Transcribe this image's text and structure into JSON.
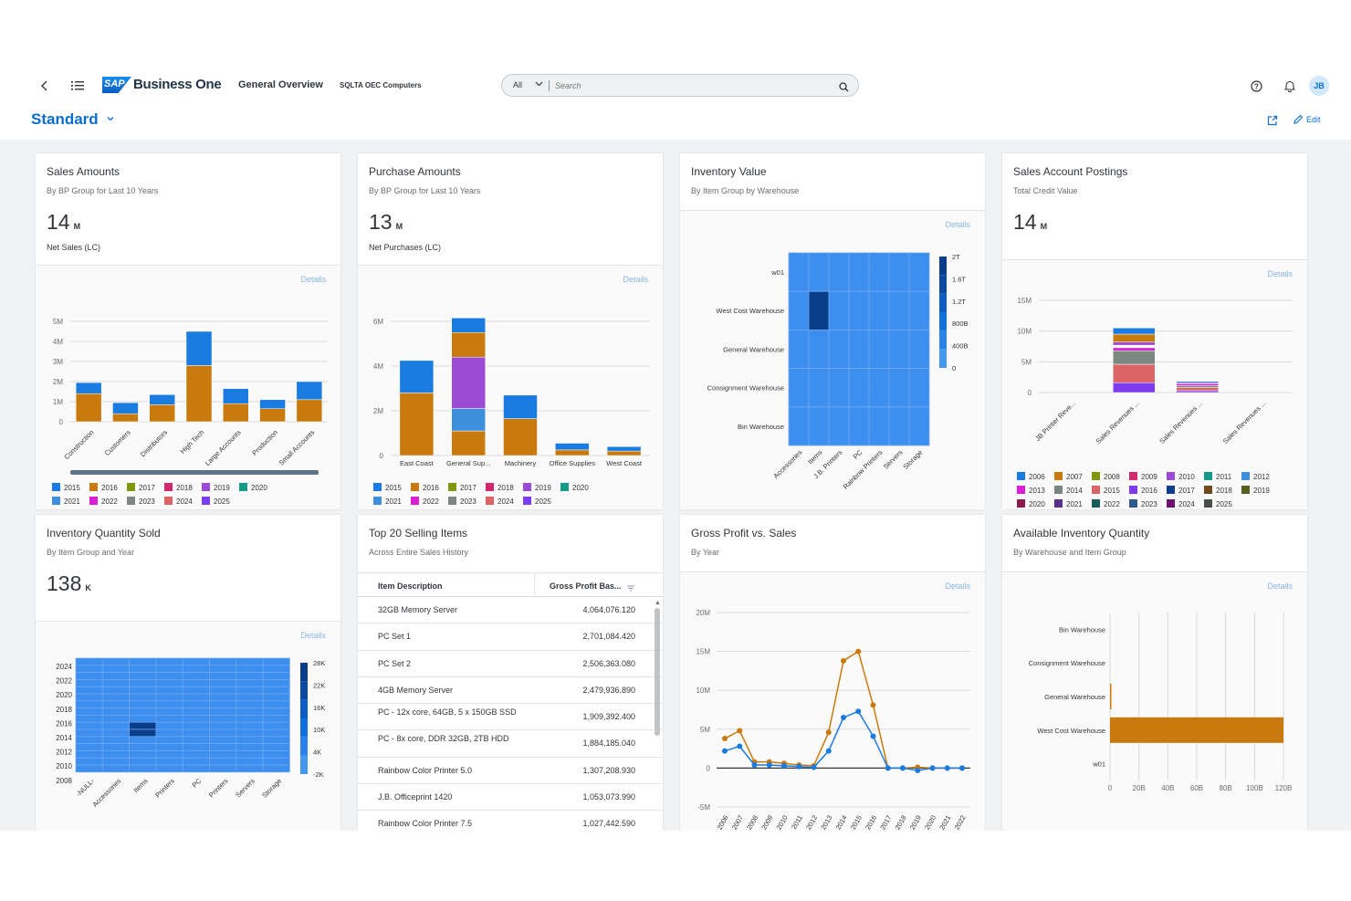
{
  "shell": {
    "logo_sap": "SAP",
    "product": "Business One",
    "title": "General Overview",
    "company": "SQLTA OEC Computers",
    "search_scope": "All",
    "search_placeholder": "Search",
    "avatar": "JB",
    "icons": [
      "back-icon",
      "menu-list-icon",
      "search-icon",
      "help-icon",
      "notification-bell-icon",
      "share-icon",
      "edit-pencil-icon"
    ]
  },
  "page": {
    "variant": "Standard",
    "edit_label": "Edit",
    "details_label": "Details"
  },
  "colors": {
    "y2015": "#1a7be0",
    "y2016": "#c87b0c",
    "y2017": "#82960b",
    "y2018": "#d2286e",
    "y2019": "#9b4ad6",
    "y2020": "#14998a",
    "y2021": "#3d8fdb",
    "y2022": "#dc1ed6",
    "y2023": "#7d8781",
    "y2024": "#dc6465",
    "y2025": "#7e3cf0",
    "heat_low": "#3d8fef",
    "heat_high": "#0a3e8a",
    "accent": "#0a6ed1"
  },
  "cards": {
    "sales": {
      "title": "Sales Amounts",
      "subtitle": "By BP Group for Last 10 Years",
      "kpi": "14",
      "kpi_scale": "M",
      "kpi_label": "Net Sales (LC)"
    },
    "purchase": {
      "title": "Purchase Amounts",
      "subtitle": "By BP Group for Last 10 Years",
      "kpi": "13",
      "kpi_scale": "M",
      "kpi_label": "Net Purchases (LC)"
    },
    "inventory_value": {
      "title": "Inventory Value",
      "subtitle": "By Item Group by Warehouse"
    },
    "postings": {
      "title": "Sales Account Postings",
      "subtitle": "Total Credit Value",
      "kpi": "14",
      "kpi_scale": "M"
    },
    "qty_sold": {
      "title": "Inventory Quantity Sold",
      "subtitle": "By Item Group and Year",
      "kpi": "138",
      "kpi_scale": "K"
    },
    "top20": {
      "title": "Top 20 Selling Items",
      "subtitle": "Across Entire Sales History",
      "col1": "Item Description",
      "col2": "Gross Profit Bas...",
      "rows": [
        {
          "item": "32GB Memory Server",
          "value": "4,064,076.120"
        },
        {
          "item": "PC Set 1",
          "value": "2,701,084.420"
        },
        {
          "item": "PC Set 2",
          "value": "2,506,363.080"
        },
        {
          "item": "4GB Memory Server",
          "value": "2,479,936.890"
        },
        {
          "item": "PC - 12x core, 64GB, 5 x 150GB SSD",
          "value": "1,909,392.400"
        },
        {
          "item": "PC - 8x core, DDR 32GB, 2TB HDD",
          "value": "1,884,185.040"
        },
        {
          "item": "Rainbow Color Printer 5.0",
          "value": "1,307,208.930"
        },
        {
          "item": "J.B. Officeprint 1420",
          "value": "1,053,073.990"
        },
        {
          "item": "Rainbow Color Printer 7.5",
          "value": "1,027,442.590"
        }
      ]
    },
    "gross": {
      "title": "Gross Profit vs. Sales",
      "subtitle": "By Year"
    },
    "available": {
      "title": "Available Inventory Quantity",
      "subtitle": "By Warehouse and Item Group"
    }
  },
  "chart_data": [
    {
      "id": "sales_amounts",
      "type": "bar",
      "stacked": true,
      "categories": [
        "Construction",
        "Customers",
        "Distributors",
        "High Tech",
        "Large Accounts",
        "Production",
        "Small Accounts"
      ],
      "y_ticks": [
        "0",
        "1M",
        "2M",
        "3M",
        "4M",
        "5M"
      ],
      "ylim": [
        0,
        5000000
      ],
      "legend": [
        "2015",
        "2016",
        "2017",
        "2018",
        "2019",
        "2020",
        "2021",
        "2022",
        "2023",
        "2024",
        "2025"
      ],
      "series": [
        {
          "name": "2016",
          "color": "#c87b0c",
          "values": [
            1400000,
            400000,
            850000,
            2800000,
            900000,
            650000,
            1100000
          ]
        },
        {
          "name": "2015",
          "color": "#1a7be0",
          "values": [
            550000,
            550000,
            500000,
            1700000,
            750000,
            450000,
            900000
          ]
        }
      ]
    },
    {
      "id": "purchase_amounts",
      "type": "bar",
      "stacked": true,
      "categories": [
        "East Coast",
        "General Sup...",
        "Machinery",
        "Office Supplies",
        "West Coast"
      ],
      "y_ticks": [
        "0",
        "2M",
        "4M",
        "6M"
      ],
      "ylim": [
        0,
        6000000
      ],
      "legend": [
        "2015",
        "2016",
        "2017",
        "2018",
        "2019",
        "2020",
        "2021",
        "2022",
        "2023",
        "2024",
        "2025"
      ],
      "series": [
        {
          "name": "2016",
          "color": "#c87b0c",
          "values": [
            2800000,
            1100000,
            1650000,
            250000,
            200000
          ]
        },
        {
          "name": "2021",
          "color": "#3d8fdb",
          "values": [
            0,
            1000000,
            0,
            0,
            0
          ]
        },
        {
          "name": "2019",
          "color": "#9b4ad6",
          "values": [
            0,
            2300000,
            0,
            0,
            0
          ]
        },
        {
          "name": "2016b",
          "color": "#c87b0c",
          "values": [
            0,
            1100000,
            0,
            0,
            0
          ]
        },
        {
          "name": "2015",
          "color": "#1a7be0",
          "values": [
            1450000,
            650000,
            1050000,
            300000,
            200000
          ]
        }
      ]
    },
    {
      "id": "inventory_value",
      "type": "heatmap",
      "rows": [
        "w01",
        "West Cost Warehouse",
        "General Warehouse",
        "Consignment Warehouse",
        "Bin Warehouse"
      ],
      "columns": [
        "Accessories",
        "Items",
        "J.B. Printers",
        "PC",
        "Rainbow Printers",
        "Servers",
        "Storage"
      ],
      "legend_ticks": [
        "2T",
        "1.6T",
        "1.2T",
        "800B",
        "400B",
        "0"
      ],
      "high_cell": {
        "row": "West Cost Warehouse",
        "column": "Items"
      }
    },
    {
      "id": "sales_account_postings",
      "type": "bar",
      "stacked": true,
      "categories": [
        "JB Printer Reve...",
        "Sales Revenues ...",
        "Sales Revenues ...",
        "Sales Revenues ..."
      ],
      "y_ticks": [
        "0",
        "5M",
        "10M",
        "15M"
      ],
      "ylim": [
        0,
        15000000
      ],
      "legend": [
        "2006",
        "2007",
        "2008",
        "2009",
        "2010",
        "2011",
        "2012",
        "2013",
        "2014",
        "2015",
        "2016",
        "2017",
        "2018",
        "2019",
        "2020",
        "2021",
        "2022",
        "2023",
        "2024",
        "2025"
      ],
      "legend_colors": [
        "#1a7be0",
        "#c87b0c",
        "#82960b",
        "#d2286e",
        "#9b4ad6",
        "#14998a",
        "#3d8fdb",
        "#dc1ed6",
        "#7d8781",
        "#dc6465",
        "#7e3cf0",
        "#0d3d8e",
        "#6e4a1e",
        "#53601f",
        "#8a1c4e",
        "#5a2f87",
        "#166058",
        "#2b5a8a",
        "#6e1070",
        "#465048"
      ],
      "series": [
        {
          "name": "2006",
          "color": "#7e3cf0",
          "values": [
            0,
            1600000,
            300000,
            0
          ]
        },
        {
          "name": "2015",
          "color": "#dc6465",
          "values": [
            0,
            3000000,
            500000,
            0
          ]
        },
        {
          "name": "2014",
          "color": "#7d8781",
          "values": [
            0,
            2200000,
            300000,
            0
          ]
        },
        {
          "name": "2013",
          "color": "#dc1ed6",
          "values": [
            0,
            500000,
            300000,
            0
          ]
        },
        {
          "name": "2012",
          "color": "#ffffff",
          "values": [
            0,
            400000,
            0,
            0
          ]
        },
        {
          "name": "2009",
          "color": "#9b4ad6",
          "values": [
            0,
            500000,
            200000,
            0
          ]
        },
        {
          "name": "2007",
          "color": "#c87b0c",
          "values": [
            0,
            1300000,
            0,
            0
          ]
        },
        {
          "name": "2006b",
          "color": "#1a7be0",
          "values": [
            0,
            1000000,
            200000,
            0
          ]
        }
      ]
    },
    {
      "id": "inventory_quantity_sold",
      "type": "heatmap",
      "rows": [
        "2024",
        "2022",
        "2020",
        "2018",
        "2016",
        "2014",
        "2012",
        "2010",
        "2008"
      ],
      "columns": [
        "-NULL-",
        "Accessories",
        "Items",
        "Printers",
        "PC",
        "Printers",
        "Servers",
        "Storage"
      ],
      "legend_ticks": [
        "28K",
        "22K",
        "16K",
        "10K",
        "4K",
        "-2K"
      ],
      "high_cells": [
        {
          "row": "2016",
          "column": "Items"
        },
        {
          "row": "2014",
          "column": "Items"
        }
      ]
    },
    {
      "id": "gross_profit_vs_sales",
      "type": "line",
      "x": [
        "2006",
        "2007",
        "2008",
        "2009",
        "2010",
        "2011",
        "2012",
        "2013",
        "2014",
        "2015",
        "2016",
        "2017",
        "2018",
        "2019",
        "2020",
        "2021",
        "2022"
      ],
      "y_ticks": [
        "-5M",
        "0",
        "5M",
        "10M",
        "15M",
        "20M"
      ],
      "ylim": [
        -5000000,
        20000000
      ],
      "series": [
        {
          "color": "#c87b0c",
          "values": [
            3800000,
            4800000,
            800000,
            800000,
            600000,
            400000,
            300000,
            4600000,
            13800000,
            15000000,
            8100000,
            0,
            0,
            100000,
            0,
            0,
            0
          ]
        },
        {
          "color": "#1a7be0",
          "values": [
            2200000,
            2800000,
            400000,
            400000,
            300000,
            200000,
            100000,
            2200000,
            6500000,
            7300000,
            4100000,
            0,
            0,
            -300000,
            0,
            0,
            0
          ]
        }
      ]
    },
    {
      "id": "available_inventory_quantity",
      "type": "bar",
      "orientation": "horizontal",
      "categories": [
        "Bin Warehouse",
        "Consignment Warehouse",
        "General Warehouse",
        "West Cost Warehouse",
        "w01"
      ],
      "x_ticks": [
        "0",
        "20B",
        "40B",
        "60B",
        "80B",
        "100B",
        "120B"
      ],
      "xlim": [
        0,
        120000000000
      ],
      "series": [
        {
          "color": "#c87b0c",
          "values": [
            0,
            0,
            300000000,
            120000000000,
            0
          ]
        }
      ]
    }
  ]
}
